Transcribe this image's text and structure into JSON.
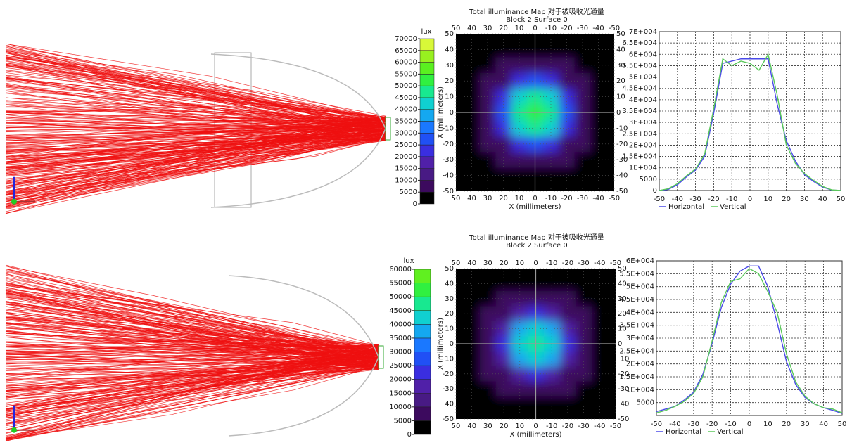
{
  "chart_data": [
    {
      "type": "heatmap",
      "title": "Total illuminance Map 对于被吸收光通量",
      "subtitle": "Block 2 Surface 0",
      "xlabel": "X (millimeters)",
      "ylabel": "X (millimeters)",
      "colorbar_label": "lux",
      "x": [
        50,
        40,
        30,
        20,
        10,
        0,
        -10,
        -20,
        -30,
        -40,
        -50
      ],
      "y": [
        50,
        40,
        30,
        20,
        10,
        0,
        -10,
        -20,
        -30,
        -40,
        -50
      ],
      "z": [
        [
          0,
          0,
          0,
          0,
          0,
          0,
          0,
          0,
          0,
          0,
          0
        ],
        [
          0,
          0,
          0,
          0,
          2500,
          3000,
          2500,
          0,
          0,
          0,
          0
        ],
        [
          0,
          0,
          0,
          5200,
          6500,
          7000,
          6500,
          5200,
          0,
          0,
          0
        ],
        [
          0,
          0,
          5200,
          8000,
          20000,
          26000,
          20000,
          8000,
          5200,
          0,
          0
        ],
        [
          0,
          2500,
          6500,
          20000,
          42000,
          48000,
          42000,
          20000,
          6500,
          2500,
          0
        ],
        [
          0,
          3000,
          7000,
          26000,
          48000,
          52000,
          48000,
          26000,
          7000,
          3000,
          0
        ],
        [
          0,
          2500,
          6500,
          20000,
          42000,
          48000,
          42000,
          20000,
          6500,
          2500,
          0
        ],
        [
          0,
          0,
          5200,
          8000,
          20000,
          26000,
          20000,
          8000,
          5200,
          0,
          0
        ],
        [
          0,
          0,
          0,
          5200,
          6500,
          7000,
          6500,
          5200,
          0,
          0,
          0
        ],
        [
          0,
          0,
          0,
          0,
          2500,
          3000,
          2500,
          0,
          0,
          0,
          0
        ],
        [
          0,
          0,
          0,
          0,
          0,
          0,
          0,
          0,
          0,
          0,
          0
        ]
      ],
      "xlim": [
        50,
        -50
      ],
      "xticks": [
        50,
        40,
        30,
        20,
        10,
        0,
        -10,
        -20,
        -30,
        -40,
        -50
      ],
      "ylim": [
        -50,
        50
      ],
      "yticks": [
        50,
        40,
        30,
        20,
        10,
        0,
        -10,
        -20,
        -30,
        -40,
        -50
      ],
      "clim": [
        0,
        70000
      ],
      "cticks": [
        0,
        5000,
        10000,
        15000,
        20000,
        25000,
        30000,
        35000,
        40000,
        45000,
        50000,
        55000,
        60000,
        65000,
        70000
      ],
      "colors": [
        "#000000",
        "#3c0a5e",
        "#481a84",
        "#5020a8",
        "#3a2ee0",
        "#2050f5",
        "#1a78ff",
        "#14a8f0",
        "#10d0d0",
        "#18e890",
        "#30f040",
        "#5af020",
        "#98f020",
        "#d8f838"
      ],
      "grid": true
    },
    {
      "type": "line",
      "x": [
        -50,
        -45,
        -40,
        -35,
        -30,
        -25,
        -20,
        -15,
        -10,
        -5,
        0,
        5,
        10,
        15,
        20,
        25,
        30,
        35,
        40,
        45,
        50
      ],
      "series": [
        {
          "name": "Horizontal",
          "color": "#4a4ae8",
          "values": [
            0,
            500,
            2500,
            6000,
            9000,
            15000,
            34000,
            56000,
            57000,
            58000,
            58000,
            58000,
            58000,
            38000,
            22000,
            13000,
            7000,
            4000,
            1500,
            200,
            0
          ]
        },
        {
          "name": "Vertical",
          "color": "#5ac85a",
          "values": [
            0,
            800,
            3000,
            6500,
            9500,
            16000,
            36000,
            58000,
            55000,
            57000,
            56000,
            53000,
            60000,
            42000,
            20000,
            12000,
            7500,
            4500,
            1800,
            300,
            0
          ]
        }
      ],
      "xlim": [
        -50,
        50
      ],
      "xticks": [
        -50,
        -40,
        -30,
        -20,
        -10,
        0,
        10,
        20,
        30,
        40,
        50
      ],
      "ylim": [
        0,
        70000
      ],
      "yticks": [
        0,
        5000,
        {
          "value": 10000,
          "label": "1E+004"
        },
        {
          "value": 15000,
          "label": "1.5E+004"
        },
        {
          "value": 20000,
          "label": "2E+004"
        },
        {
          "value": 25000,
          "label": "2.5E+004"
        },
        {
          "value": 30000,
          "label": "3E+004"
        },
        {
          "value": 35000,
          "label": "3.5E+004"
        },
        {
          "value": 40000,
          "label": "4E+004"
        },
        {
          "value": 45000,
          "label": "4.5E+004"
        },
        {
          "value": 50000,
          "label": "5E+004"
        },
        {
          "value": 55000,
          "label": "5.5E+004"
        },
        {
          "value": 60000,
          "label": "6E+004"
        },
        {
          "value": 65000,
          "label": "6.5E+004"
        },
        {
          "value": 70000,
          "label": "7E+004"
        }
      ],
      "grid": true
    },
    {
      "type": "heatmap",
      "title": "Total illuminance Map 对于被吸收光通量",
      "subtitle": "Block 2 Surface 0",
      "xlabel": "X (millimeters)",
      "ylabel": "X (millimeters)",
      "colorbar_label": "lux",
      "x": [
        50,
        40,
        30,
        20,
        10,
        0,
        -10,
        -20,
        -30,
        -40,
        -50
      ],
      "y": [
        50,
        40,
        30,
        20,
        10,
        0,
        -10,
        -20,
        -30,
        -40,
        -50
      ],
      "z": [
        [
          0,
          0,
          0,
          0,
          0,
          0,
          0,
          0,
          0,
          0,
          0
        ],
        [
          0,
          0,
          0,
          0,
          2500,
          3000,
          2500,
          0,
          0,
          0,
          0
        ],
        [
          0,
          0,
          0,
          5200,
          6500,
          7000,
          6500,
          5200,
          0,
          0,
          0
        ],
        [
          0,
          0,
          5200,
          7000,
          17000,
          22000,
          17000,
          7000,
          5200,
          0,
          0
        ],
        [
          0,
          2500,
          6500,
          17000,
          36000,
          42000,
          36000,
          17000,
          6500,
          2500,
          0
        ],
        [
          0,
          3000,
          7000,
          22000,
          42000,
          45000,
          42000,
          22000,
          7000,
          3000,
          0
        ],
        [
          0,
          2500,
          6500,
          17000,
          36000,
          42000,
          36000,
          17000,
          6500,
          2500,
          0
        ],
        [
          0,
          0,
          5200,
          7000,
          17000,
          22000,
          17000,
          7000,
          5200,
          0,
          0
        ],
        [
          0,
          0,
          0,
          5200,
          6500,
          7000,
          6500,
          5200,
          0,
          0,
          0
        ],
        [
          0,
          0,
          0,
          0,
          2500,
          3000,
          2500,
          0,
          0,
          0,
          0
        ],
        [
          0,
          0,
          0,
          0,
          0,
          0,
          0,
          0,
          0,
          0,
          0
        ]
      ],
      "xlim": [
        50,
        -50
      ],
      "xticks": [
        50,
        40,
        30,
        20,
        10,
        0,
        -10,
        -20,
        -30,
        -40,
        -50
      ],
      "ylim": [
        -50,
        50
      ],
      "yticks": [
        50,
        40,
        30,
        20,
        10,
        0,
        -10,
        -20,
        -30,
        -40,
        -50
      ],
      "clim": [
        0,
        60000
      ],
      "cticks": [
        0,
        5000,
        10000,
        15000,
        20000,
        25000,
        30000,
        35000,
        40000,
        45000,
        50000,
        55000,
        60000
      ],
      "colors": [
        "#000000",
        "#3c0a5e",
        "#481a84",
        "#5020a8",
        "#3a2ee0",
        "#2050f5",
        "#1a78ff",
        "#14a8f0",
        "#10d0d0",
        "#18e890",
        "#30f040",
        "#60f020"
      ],
      "grid": true
    },
    {
      "type": "line",
      "x": [
        -50,
        -45,
        -40,
        -35,
        -30,
        -25,
        -20,
        -15,
        -10,
        -5,
        0,
        5,
        10,
        15,
        20,
        25,
        30,
        35,
        40,
        45,
        50
      ],
      "series": [
        {
          "name": "Horizontal",
          "color": "#4a4ae8",
          "values": [
            1500,
            2500,
            3500,
            6000,
            9000,
            16000,
            28000,
            42000,
            51000,
            56000,
            58000,
            58000,
            50000,
            36000,
            21000,
            12000,
            7000,
            4500,
            3000,
            2000,
            800
          ]
        },
        {
          "name": "Vertical",
          "color": "#5ac85a",
          "values": [
            1000,
            2000,
            3500,
            5500,
            8500,
            15000,
            29000,
            44000,
            52000,
            53000,
            57000,
            55000,
            48000,
            40000,
            24000,
            13000,
            7500,
            4500,
            3000,
            2500,
            1000
          ]
        }
      ],
      "xlim": [
        -50,
        50
      ],
      "xticks": [
        -50,
        -40,
        -30,
        -20,
        -10,
        0,
        10,
        20,
        30,
        40,
        50
      ],
      "ylim": [
        0,
        60000
      ],
      "yticks": [
        5000,
        {
          "value": 10000,
          "label": "1E+004"
        },
        {
          "value": 15000,
          "label": "1.5E+004"
        },
        {
          "value": 20000,
          "label": "2E+004"
        },
        {
          "value": 25000,
          "label": "2.5E+004"
        },
        {
          "value": 30000,
          "label": "3E+004"
        },
        {
          "value": 35000,
          "label": "3.5E+004"
        },
        {
          "value": 40000,
          "label": "4E+004"
        },
        {
          "value": 45000,
          "label": "4.5E+004"
        },
        {
          "value": 50000,
          "label": "5E+004"
        },
        {
          "value": 55000,
          "label": "5.5E+004"
        },
        {
          "value": 60000,
          "label": "6E+004"
        }
      ],
      "grid": true
    }
  ]
}
